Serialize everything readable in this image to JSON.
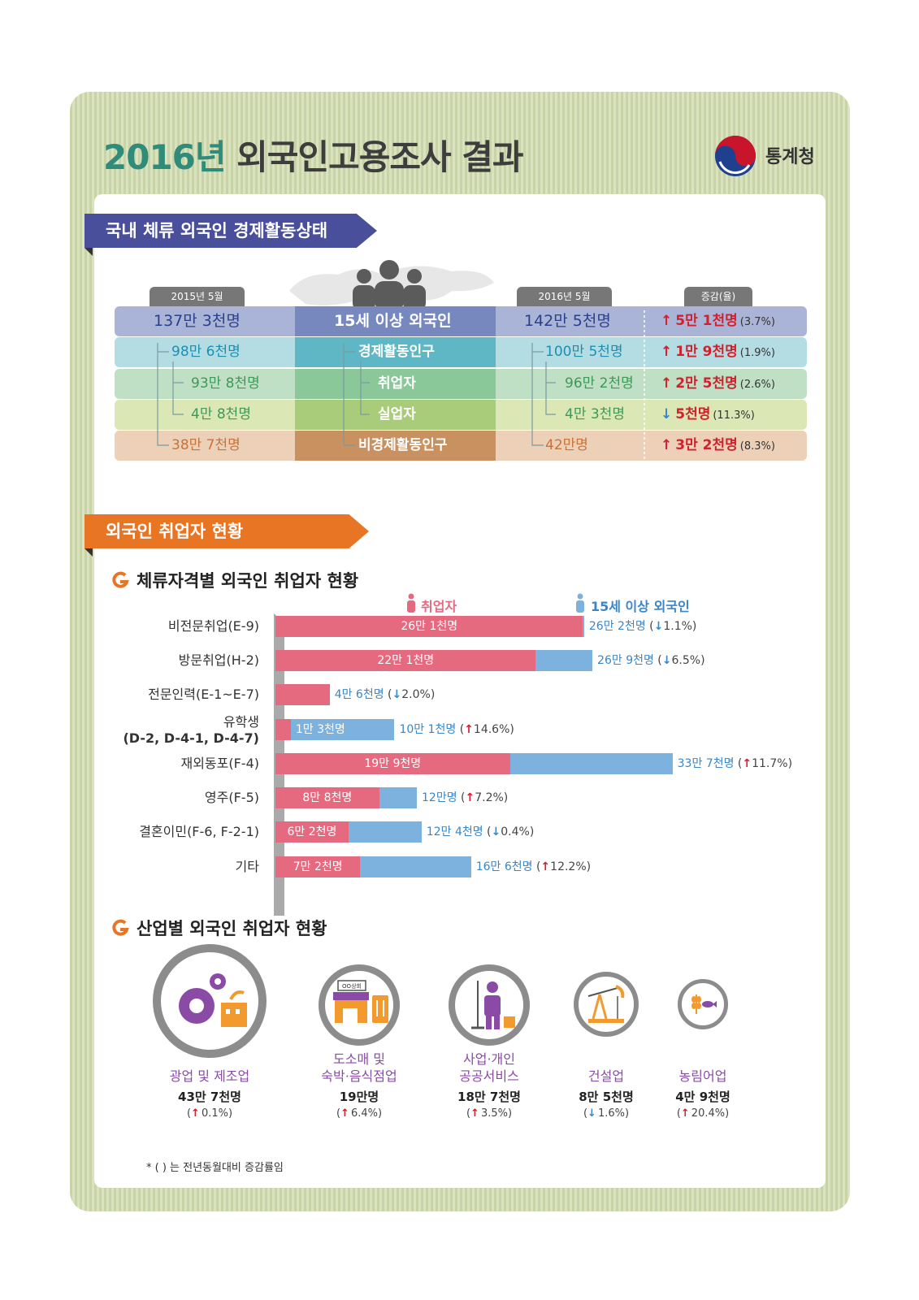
{
  "header": {
    "title_year": "2016년",
    "title_rest": "외국인고용조사 결과",
    "org": "통계청"
  },
  "section1": {
    "ribbon": "국내 체류 외국인 경제활동상태",
    "col_2015": "2015년 5월",
    "col_2016": "2016년 5월",
    "col_change": "증감(율)",
    "rows": [
      {
        "item": "15세 이상 외국인",
        "y2015": "137만 3천명",
        "y2016": "142만 5천명",
        "change": "5만 1천명",
        "rate": "(3.7%)",
        "dir": "up"
      },
      {
        "item": "경제활동인구",
        "y2015": "98만 6천명",
        "y2016": "100만 5천명",
        "change": "1만 9천명",
        "rate": "(1.9%)",
        "dir": "up"
      },
      {
        "item": "취업자",
        "y2015": "93만 8천명",
        "y2016": "96만 2천명",
        "change": "2만 5천명",
        "rate": "(2.6%)",
        "dir": "up"
      },
      {
        "item": "실업자",
        "y2015": "4만 8천명",
        "y2016": "4만 3천명",
        "change": "5천명",
        "rate": "(11.3%)",
        "dir": "down"
      },
      {
        "item": "비경제활동인구",
        "y2015": "38만 7천명",
        "y2016": "42만명",
        "change": "3만 2천명",
        "rate": "(8.3%)",
        "dir": "up"
      }
    ],
    "colors": {
      "row1": "#aab4d6",
      "row2": "#b4dde3",
      "row3": "#bfe0c4",
      "row4": "#dbe8b6",
      "row5": "#ecd0b8"
    }
  },
  "section2": {
    "ribbon": "외국인 취업자 현황",
    "sub1": "체류자격별 외국인 취업자 현황",
    "legend_emp": "취업자",
    "legend_total": "15세 이상 외국인",
    "bars": [
      {
        "label": "비전문취업(E-9)",
        "emp": 26.1,
        "total": 26.2,
        "emp_text": "26만 1천명",
        "total_text": "26만 2천명",
        "chg": "1.1%)",
        "dir": "down"
      },
      {
        "label": "방문취업(H-2)",
        "emp": 22.1,
        "total": 26.9,
        "emp_text": "22만 1천명",
        "total_text": "26만 9천명",
        "chg": "6.5%)",
        "dir": "down"
      },
      {
        "label": "전문인력(E-1~E-7)",
        "emp": 4.6,
        "total": 4.6,
        "emp_text": "4만 6천명",
        "total_text": "4만 6천명",
        "chg": "2.0%)",
        "dir": "down"
      },
      {
        "label": "유학생",
        "label2": "(D-2, D-4-1, D-4-7)",
        "emp": 1.3,
        "total": 10.1,
        "emp_text": "1만 3천명",
        "total_text": "10만 1천명",
        "chg": "14.6%)",
        "dir": "up"
      },
      {
        "label": "재외동포(F-4)",
        "emp": 19.9,
        "total": 33.7,
        "emp_text": "19만 9천명",
        "total_text": "33만 7천명",
        "chg": "11.7%)",
        "dir": "up"
      },
      {
        "label": "영주(F-5)",
        "emp": 8.8,
        "total": 12.0,
        "emp_text": "8만 8천명",
        "total_text": "12만명",
        "chg": "7.2%)",
        "dir": "up"
      },
      {
        "label": "결혼이민(F-6, F-2-1)",
        "emp": 6.2,
        "total": 12.4,
        "emp_text": "6만 2천명",
        "total_text": "12만 4천명",
        "chg": "0.4%)",
        "dir": "down"
      },
      {
        "label": "기타",
        "emp": 7.2,
        "total": 16.6,
        "emp_text": "7만 2천명",
        "total_text": "16만 6천명",
        "chg": "12.2%)",
        "dir": "up"
      }
    ],
    "sub2": "산업별 외국인 취업자 현황",
    "industries": [
      {
        "name1": "광업 및 제조업",
        "name2": "",
        "value": "43만 7천명",
        "chg": "0.1%)",
        "dir": "up",
        "sign_text": ""
      },
      {
        "name1": "도소매 및",
        "name2": "숙박·음식점업",
        "value": "19만명",
        "chg": "6.4%)",
        "dir": "up",
        "sign_text": "OO상회"
      },
      {
        "name1": "사업·개인",
        "name2": "공공서비스",
        "value": "18만 7천명",
        "chg": "3.5%)",
        "dir": "up",
        "sign_text": ""
      },
      {
        "name1": "건설업",
        "name2": "",
        "value": "8만 5천명",
        "chg": "1.6%)",
        "dir": "down",
        "sign_text": ""
      },
      {
        "name1": "농림어업",
        "name2": "",
        "value": "4만 9천명",
        "chg": "20.4%)",
        "dir": "up",
        "sign_text": ""
      }
    ],
    "footnote": "* (       ) 는 전년동월대비 증감률임"
  }
}
